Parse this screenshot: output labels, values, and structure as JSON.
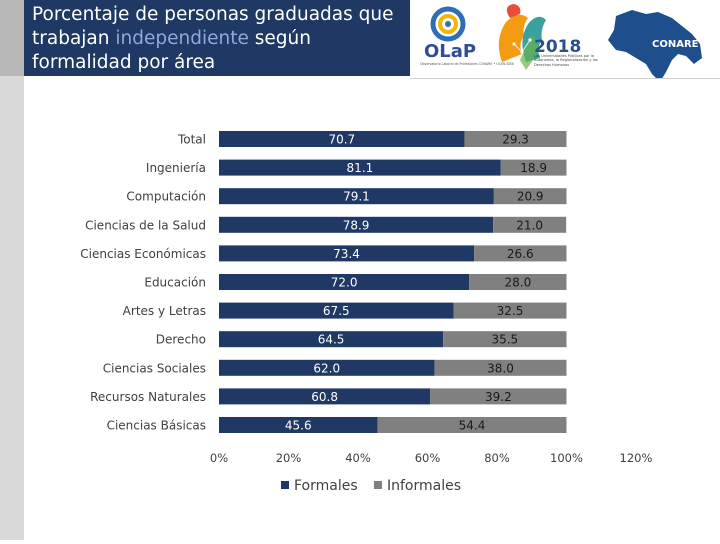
{
  "header": {
    "title_before": "Porcentaje de personas graduadas que trabajan ",
    "title_highlight": "independiente",
    "title_after": " según formalidad por área"
  },
  "banner": {
    "logo_text": "OLaP",
    "logo_subtitle": "Observatorio Laboral de Profesiones CONARE • OCEN-SIEB",
    "year": "2018",
    "campaign_text": "Las Universidades Públicas por la Autonomía, la Regionalización y los Derechos Humanos",
    "org_name": "CONARE"
  },
  "colors": {
    "formales": "#1f3864",
    "informales": "#808080",
    "title_bg": "#1f3864",
    "highlight": "#8ea9db"
  },
  "chart_data": {
    "type": "bar",
    "orientation": "horizontal",
    "stacked": true,
    "categories": [
      "Total",
      "Ingeniería",
      "Computación",
      "Ciencias de la Salud",
      "Ciencias Económicas",
      "Educación",
      "Artes y Letras",
      "Derecho",
      "Ciencias Sociales",
      "Recursos Naturales",
      "Ciencias Básicas"
    ],
    "series": [
      {
        "name": "Formales",
        "values": [
          70.7,
          81.1,
          79.1,
          78.9,
          73.4,
          72.0,
          67.5,
          64.5,
          62.0,
          60.8,
          45.6
        ]
      },
      {
        "name": "Informales",
        "values": [
          29.3,
          18.9,
          20.9,
          21.0,
          26.6,
          28.0,
          32.5,
          35.5,
          38.0,
          39.2,
          54.4
        ]
      }
    ],
    "value_labels": {
      "Formales": [
        "70.7",
        "81.1",
        "79.1",
        "78.9",
        "73.4",
        "72.0",
        "67.5",
        "64.5",
        "62.0",
        "60.8",
        "45.6"
      ],
      "Informales": [
        "29.3",
        "18.9",
        "20.9",
        "21.0",
        "26.6",
        "28.0",
        "32.5",
        "35.5",
        "38.0",
        "39.2",
        "54.4"
      ]
    },
    "xlim": [
      0,
      120
    ],
    "xticks": [
      0,
      20,
      40,
      60,
      80,
      100,
      120
    ],
    "xtick_labels": [
      "0%",
      "20%",
      "40%",
      "60%",
      "80%",
      "100%",
      "120%"
    ],
    "legend_position": "bottom-center",
    "grid": false,
    "title": "",
    "xlabel": "",
    "ylabel": ""
  }
}
